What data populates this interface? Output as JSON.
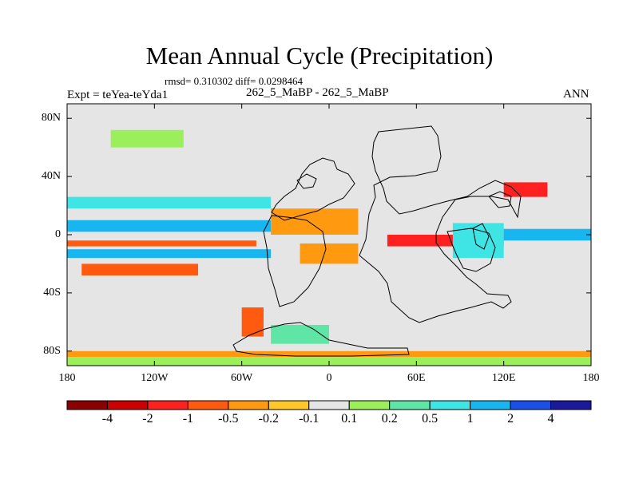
{
  "title": "Mean Annual Cycle (Precipitation)",
  "stats": "rmsd= 0.310302 diff= 0.0298464",
  "expt_label": "Expt = teYea-teYda1",
  "subtitle": "262_5_MaBP - 262_5_MaBP",
  "season": "ANN",
  "chart_data": {
    "type": "heatmap",
    "title": "Mean Annual Cycle (Precipitation)",
    "projection": "cylindrical-equidistant",
    "lon_range": [
      -180,
      180
    ],
    "lat_range": [
      -90,
      90
    ],
    "x_ticks": [
      {
        "value": -180,
        "label": "180"
      },
      {
        "value": -120,
        "label": "120W"
      },
      {
        "value": -60,
        "label": "60W"
      },
      {
        "value": 0,
        "label": "0"
      },
      {
        "value": 60,
        "label": "60E"
      },
      {
        "value": 120,
        "label": "120E"
      },
      {
        "value": 180,
        "label": "180"
      }
    ],
    "y_ticks": [
      {
        "value": 80,
        "label": "80N"
      },
      {
        "value": 40,
        "label": "40N"
      },
      {
        "value": 0,
        "label": "0"
      },
      {
        "value": -40,
        "label": "40S"
      },
      {
        "value": -80,
        "label": "80S"
      }
    ],
    "colorbar": {
      "labels": [
        "-4",
        "-2",
        "-1",
        "-0.5",
        "-0.2",
        "-0.1",
        "0.1",
        "0.2",
        "0.5",
        "1",
        "2",
        "4"
      ],
      "colors": [
        "#8b0000",
        "#cc0000",
        "#ff2020",
        "#ff5a10",
        "#ff9a10",
        "#ffc828",
        "#e5e5e5",
        "#9aef5a",
        "#5fe6a6",
        "#3fe4e4",
        "#18b6f0",
        "#1a50e8",
        "#1a1a9a"
      ]
    },
    "background_class": "-0.1 to 0.1",
    "anomaly_bands": [
      {
        "lon": [
          -180,
          -40
        ],
        "lat": [
          18,
          26
        ],
        "class": 9
      },
      {
        "lon": [
          -180,
          -40
        ],
        "lat": [
          2,
          10
        ],
        "class": 10
      },
      {
        "lon": [
          -180,
          -50
        ],
        "lat": [
          -8,
          -4
        ],
        "class": 3
      },
      {
        "lon": [
          -180,
          -40
        ],
        "lat": [
          -16,
          -10
        ],
        "class": 10
      },
      {
        "lon": [
          -170,
          -90
        ],
        "lat": [
          -28,
          -20
        ],
        "class": 3
      },
      {
        "lon": [
          -150,
          -100
        ],
        "lat": [
          60,
          72
        ],
        "class": 7
      },
      {
        "lon": [
          -40,
          20
        ],
        "lat": [
          0,
          18
        ],
        "class": 4
      },
      {
        "lon": [
          -20,
          20
        ],
        "lat": [
          -20,
          -6
        ],
        "class": 4
      },
      {
        "lon": [
          40,
          120
        ],
        "lat": [
          -8,
          0
        ],
        "class": 2
      },
      {
        "lon": [
          85,
          120
        ],
        "lat": [
          -16,
          8
        ],
        "class": 9
      },
      {
        "lon": [
          120,
          150
        ],
        "lat": [
          26,
          36
        ],
        "class": 2
      },
      {
        "lon": [
          120,
          180
        ],
        "lat": [
          -4,
          4
        ],
        "class": 10
      },
      {
        "lon": [
          -180,
          180
        ],
        "lat": [
          -84,
          -80
        ],
        "class": 4
      },
      {
        "lon": [
          -180,
          180
        ],
        "lat": [
          -90,
          -84
        ],
        "class": 7
      },
      {
        "lon": [
          -60,
          -45
        ],
        "lat": [
          -70,
          -50
        ],
        "class": 3
      },
      {
        "lon": [
          -40,
          0
        ],
        "lat": [
          -75,
          -62
        ],
        "class": 8
      }
    ]
  }
}
